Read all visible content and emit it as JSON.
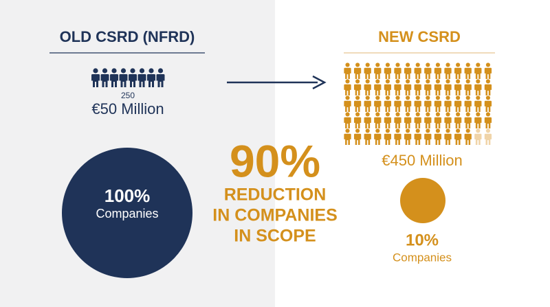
{
  "left": {
    "title": "OLD CSRD (NFRD)",
    "employees": "250",
    "turnover": "€50 Million",
    "circle": {
      "value": "100%",
      "label": "Companies"
    }
  },
  "center": {
    "value": "90%",
    "lines": [
      "REDUCTION",
      "IN COMPANIES",
      "IN SCOPE"
    ]
  },
  "right": {
    "title": "NEW CSRD",
    "turnover": "€450 Million",
    "circle": {
      "value": "10%",
      "label": "Companies"
    }
  }
}
